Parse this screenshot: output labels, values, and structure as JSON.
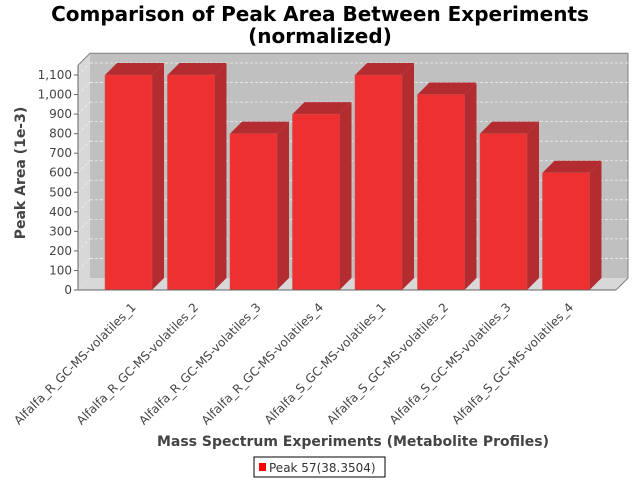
{
  "chart_data": {
    "type": "bar",
    "title": "Comparison of Peak Area Between Experiments",
    "subtitle": "(normalized)",
    "xlabel": "Mass Spectrum Experiments (Metabolite Profiles)",
    "ylabel": "Peak Area (1e-3)",
    "ylim": [
      0,
      1150
    ],
    "yticks": [
      0,
      100,
      200,
      300,
      400,
      500,
      600,
      700,
      800,
      900,
      1000,
      1100
    ],
    "ytick_labels": [
      "0",
      "100",
      "200",
      "300",
      "400",
      "500",
      "600",
      "700",
      "800",
      "900",
      "1,000",
      "1,100"
    ],
    "grid": true,
    "categories": [
      "Alfalfa_R_GC-MS-volatiles_1",
      "Alfalfa_R_GC-MS-volatiles_2",
      "Alfalfa_R_GC-MS-volatiles_3",
      "Alfalfa_R_GC-MS-volatiles_4",
      "Alfalfa_S_GC-MS-volatiles_1",
      "Alfalfa_S_GC-MS-volatiles_2",
      "Alfalfa_S_GC-MS-volatiles_3",
      "Alfalfa_S_GC-MS-volatiles_4"
    ],
    "series": [
      {
        "name": "Peak 57(38.3504)",
        "color": "#ee3030",
        "values": [
          1100,
          1100,
          800,
          900,
          1100,
          1000,
          800,
          600
        ]
      }
    ],
    "legend_position": "bottom"
  }
}
